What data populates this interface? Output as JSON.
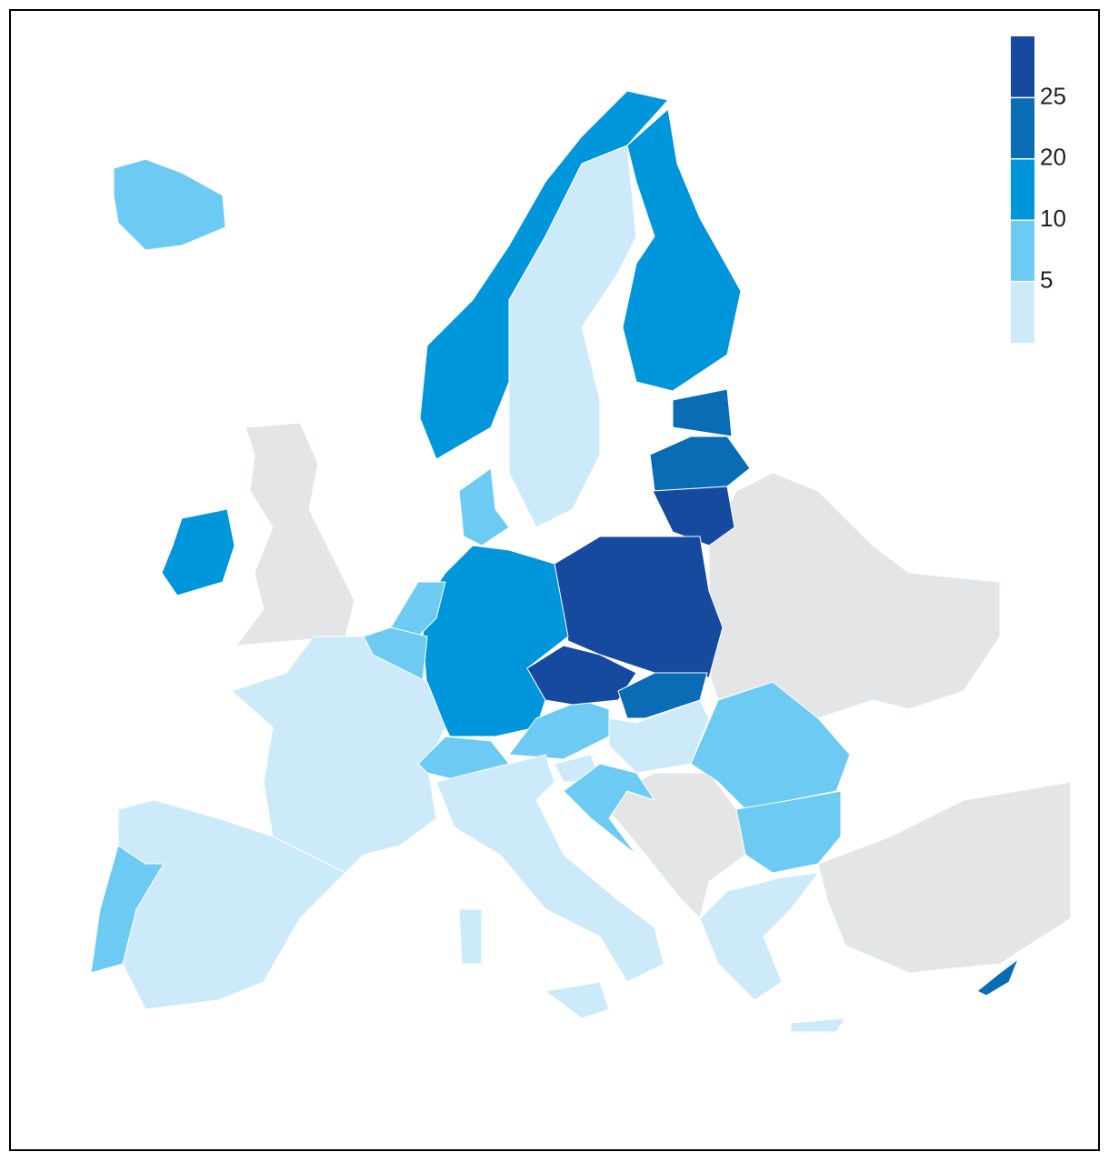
{
  "legend": {
    "ticks": [
      5,
      10,
      20,
      25
    ],
    "colors": [
      "#cceaf9",
      "#6dcbf3",
      "#0096db",
      "#0a6cb4",
      "#164a9e"
    ]
  }
}
